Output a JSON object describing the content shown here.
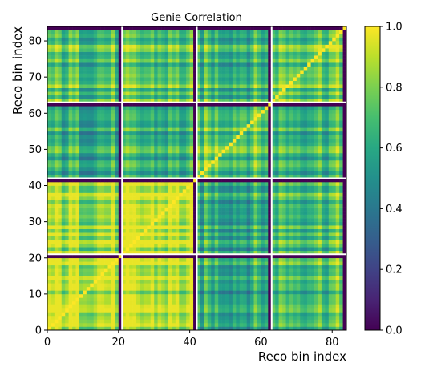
{
  "chart_data": {
    "type": "heatmap",
    "title": "Genie Correlation",
    "xlabel": "Reco bin index",
    "ylabel": "Reco bin index",
    "n_bins": 84,
    "block_size": 21,
    "xlim": [
      0,
      84
    ],
    "ylim": [
      0,
      84
    ],
    "x_ticks": [
      0,
      20,
      40,
      60,
      80
    ],
    "y_ticks": [
      0,
      10,
      20,
      30,
      40,
      50,
      60,
      70,
      80
    ],
    "colorbar": {
      "range": [
        0.0,
        1.0
      ],
      "ticks": [
        "0.0",
        "0.2",
        "0.4",
        "0.6",
        "0.8",
        "1.0"
      ],
      "colormap": "viridis"
    },
    "block_correlation_levels": [
      [
        0.9,
        0.88,
        0.62,
        0.72
      ],
      [
        0.88,
        0.9,
        0.62,
        0.72
      ],
      [
        0.62,
        0.62,
        0.72,
        0.68
      ],
      [
        0.72,
        0.72,
        0.68,
        0.76
      ]
    ],
    "diagonal_value": 1.0,
    "block_boundary_value": 0.0
  }
}
